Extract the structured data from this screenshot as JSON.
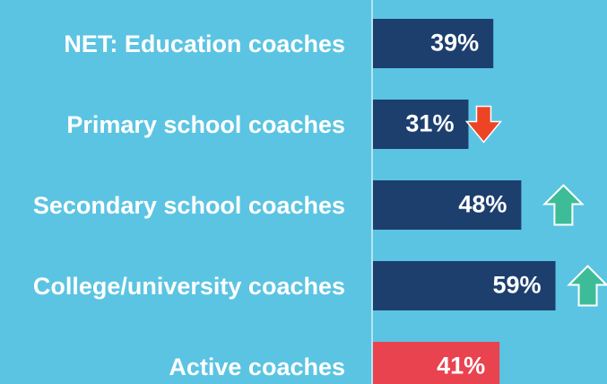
{
  "chart_data": {
    "type": "hbar",
    "categories": [
      "NET: Education coaches",
      "Primary school coaches",
      "Secondary school coaches",
      "College/university coaches",
      "Active coaches"
    ],
    "values": [
      39,
      31,
      48,
      59,
      41
    ],
    "value_labels": [
      "39%",
      "31%",
      "48%",
      "59%",
      "41%"
    ],
    "colors": [
      "#1d3f6e",
      "#1d3f6e",
      "#1d3f6e",
      "#1d3f6e",
      "#e8434f"
    ],
    "trends": [
      null,
      "down",
      "up",
      "up",
      null
    ],
    "xlim": [
      0,
      75
    ]
  }
}
